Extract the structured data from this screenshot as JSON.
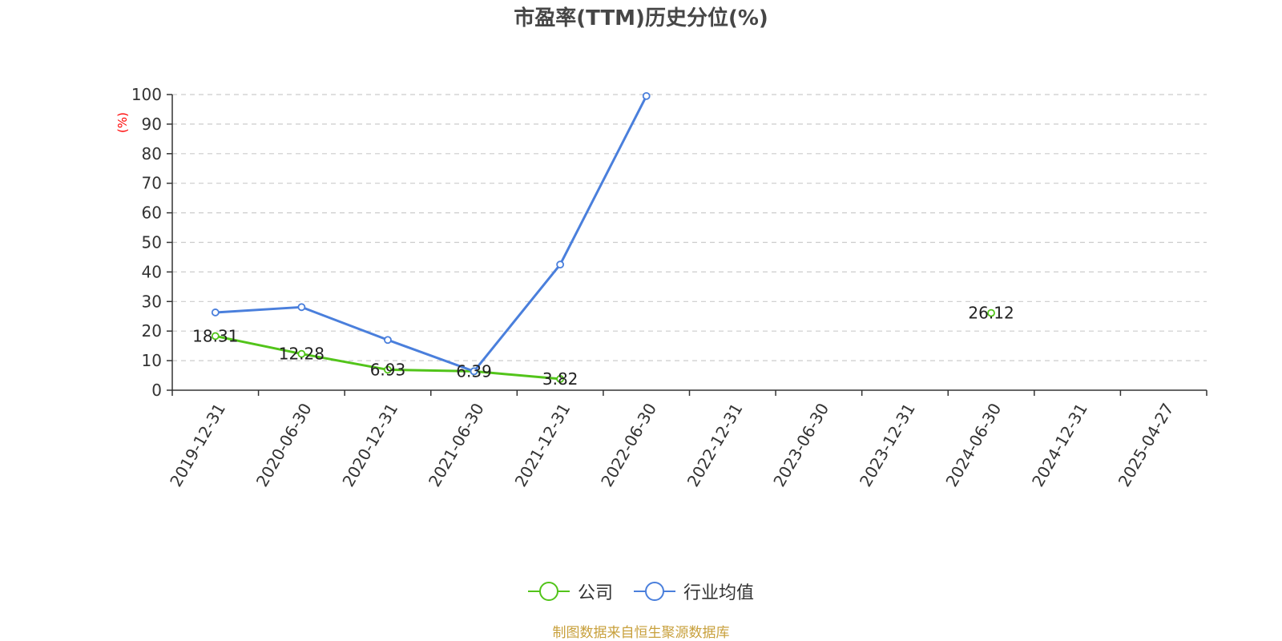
{
  "chart_data": {
    "type": "line",
    "title": "市盈率(TTM)历史分位(%)",
    "ylabel": "(%)",
    "xlabel": "",
    "ylim": [
      0,
      100
    ],
    "y_ticks": [
      0,
      10,
      20,
      30,
      40,
      50,
      60,
      70,
      80,
      90,
      100
    ],
    "categories": [
      "2019-12-31",
      "2020-06-30",
      "2020-12-31",
      "2021-06-30",
      "2021-12-31",
      "2022-06-30",
      "2022-12-31",
      "2023-06-30",
      "2023-12-31",
      "2024-06-30",
      "2024-12-31",
      "2025-04-27"
    ],
    "series": [
      {
        "name": "公司",
        "color": "#52c41a",
        "values": [
          18.31,
          12.28,
          6.93,
          6.39,
          3.82,
          null,
          null,
          null,
          null,
          26.12,
          null,
          null
        ],
        "labels": [
          "18.31",
          "12.28",
          "6.93",
          "6.39",
          "3.82",
          null,
          null,
          null,
          null,
          "26.12",
          null,
          null
        ]
      },
      {
        "name": "行业均值",
        "color": "#4a7fdc",
        "values": [
          26.3,
          28.1,
          17.0,
          6.4,
          42.5,
          99.5,
          null,
          null,
          null,
          null,
          null,
          null
        ]
      }
    ],
    "grid": true,
    "legend_position": "bottom-center"
  },
  "footer": {
    "source": "制图数据来自恒生聚源数据库"
  },
  "colors": {
    "title": "#464646",
    "axis": "#333333",
    "grid": "#cccccc",
    "ylabel": "#ff0000",
    "source": "#c8a03c"
  }
}
